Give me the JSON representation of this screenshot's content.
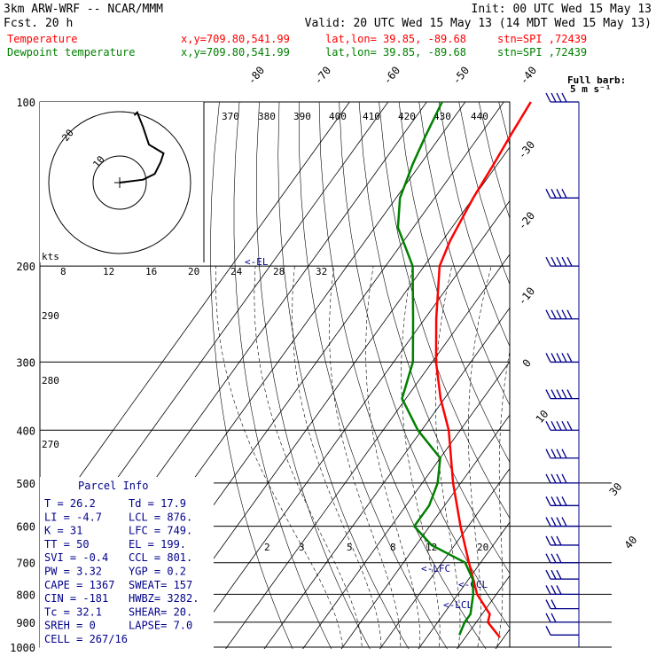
{
  "header": {
    "line1_left": "3km ARW-WRF -- NCAR/MMM",
    "line1_right": "Init: 00 UTC Wed 15 May 13",
    "line2_left": "Fcst.   20 h",
    "line2_right": "Valid: 20 UTC Wed 15 May 13 (14 MDT Wed 15 May 13)",
    "temp_line": {
      "name": "Temperature",
      "xy": "x,y=709.80,541.99",
      "latlon": "lat,lon= 39.85, -89.68",
      "stn": "stn=SPI ,72439",
      "color": "#ff0000"
    },
    "dew_line": {
      "name": "Dewpoint temperature",
      "xy": "x,y=709.80,541.99",
      "latlon": "lat,lon= 39.85, -89.68",
      "stn": "stn=SPI ,72439",
      "color": "#008000"
    }
  },
  "full_barb_label": "Full barb:",
  "full_barb_units": "5 m s⁻¹",
  "hodograph": {
    "kts_label": "kts",
    "ring_labels": [
      "10",
      "20"
    ],
    "speed_ticks": [
      "8",
      "12",
      "16",
      "20",
      "24",
      "28",
      "32"
    ],
    "wind_points": [
      [
        0,
        0
      ],
      [
        8,
        1
      ],
      [
        12,
        3
      ],
      [
        14,
        7
      ],
      [
        15,
        10
      ],
      [
        10,
        13
      ],
      [
        9,
        16
      ],
      [
        8,
        19
      ],
      [
        6,
        24
      ],
      [
        5,
        23
      ]
    ]
  },
  "chart_data": {
    "type": "line",
    "title": "Skew-T",
    "pressure_levels": [
      "100",
      "200",
      "300",
      "400",
      "500",
      "600",
      "700",
      "800",
      "900",
      "1000"
    ],
    "isotherm_labels": [
      "-80",
      "-70",
      "-60",
      "-50",
      "-40",
      "-30",
      "-20",
      "-10",
      "0",
      "10",
      "30",
      "40"
    ],
    "theta_labels": [
      "370",
      "380",
      "390",
      "400",
      "410",
      "420",
      "430",
      "440",
      "290",
      "280",
      "270"
    ],
    "mixing_ratio_labels": [
      "2",
      "3",
      "5",
      "8",
      "12",
      "20"
    ],
    "level_markers": [
      "EL",
      "LFC",
      "CCL",
      "LCL"
    ],
    "series": [
      {
        "name": "Temperature",
        "color": "#ff0000",
        "p": [
          960,
          900,
          870,
          800,
          700,
          600,
          500,
          400,
          350,
          300,
          250,
          200,
          180,
          150,
          130,
          115,
          100
        ],
        "t": [
          29,
          23,
          22,
          15,
          7,
          -2,
          -12,
          -23,
          -31,
          -39,
          -47,
          -56,
          -58,
          -60,
          -61,
          -62,
          -63
        ]
      },
      {
        "name": "Dewpoint temperature",
        "color": "#008000",
        "p": [
          950,
          900,
          870,
          800,
          750,
          700,
          650,
          600,
          550,
          500,
          450,
          400,
          350,
          300,
          250,
          200,
          170,
          150,
          130,
          115,
          100
        ],
        "td": [
          18,
          17,
          17,
          14,
          11,
          6,
          -6,
          -14,
          -14,
          -16,
          -20,
          -31,
          -41,
          -45,
          -53,
          -63,
          -74,
          -79,
          -82,
          -84,
          -86
        ]
      }
    ],
    "wind_barbs": [
      [
        950,
        230,
        10
      ],
      [
        900,
        240,
        15
      ],
      [
        850,
        240,
        20
      ],
      [
        800,
        245,
        25
      ],
      [
        750,
        245,
        25
      ],
      [
        700,
        250,
        30
      ],
      [
        650,
        250,
        30
      ],
      [
        600,
        255,
        35
      ],
      [
        550,
        255,
        35
      ],
      [
        500,
        260,
        40
      ],
      [
        450,
        260,
        40
      ],
      [
        400,
        260,
        45
      ],
      [
        350,
        260,
        45
      ],
      [
        300,
        255,
        50
      ],
      [
        250,
        250,
        50
      ],
      [
        200,
        250,
        45
      ],
      [
        150,
        250,
        40
      ],
      [
        100,
        255,
        35
      ]
    ]
  },
  "parcel_info": {
    "title": "Parcel Info",
    "rows": [
      [
        "T  =    26.2",
        "Td =  17.9"
      ],
      [
        "LI =    -4.7",
        "LCL =  876."
      ],
      [
        "K  =      31",
        "LFC =  749."
      ],
      [
        "TT =      50",
        "EL  =  199."
      ],
      [
        "SVI =   -0.4",
        "CCL =  801."
      ],
      [
        "PW =    3.32",
        "YGP =   0.2"
      ],
      [
        "CAPE =  1367",
        "SWEAT=   157"
      ],
      [
        "CIN =   -181",
        "HWBZ= 3282."
      ],
      [
        "Tc =    32.1",
        "SHEAR=  20."
      ],
      [
        "SREH =     0",
        "LAPSE=  7.0"
      ],
      [
        "CELL = 267/16",
        ""
      ]
    ]
  }
}
